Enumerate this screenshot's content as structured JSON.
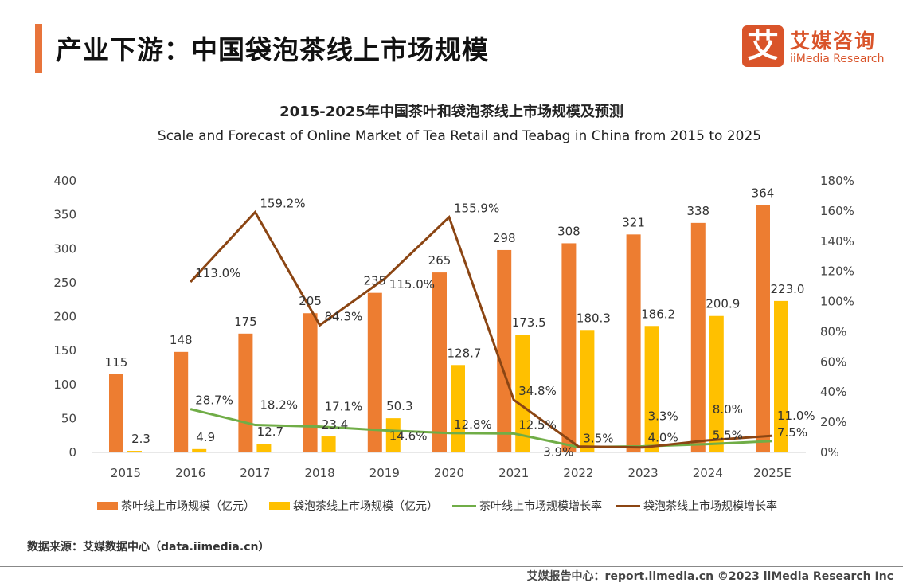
{
  "header": {
    "title": "产业下游：中国袋泡茶线上市场规模"
  },
  "logo": {
    "mark": "艾",
    "cn": "艾媒咨询",
    "en": "iiMedia Research"
  },
  "chart_data": {
    "type": "bar",
    "title": "2015-2025年中国茶叶和袋泡茶线上市场规模及预测",
    "subtitle": "Scale and Forecast of Online Market of Tea Retail and Teabag in China from 2015 to 2025",
    "categories": [
      "2015",
      "2016",
      "2017",
      "2018",
      "2019",
      "2020",
      "2021",
      "2022",
      "2023",
      "2024",
      "2025E"
    ],
    "ylim": [
      0,
      400
    ],
    "yticks": [
      0,
      50,
      100,
      150,
      200,
      250,
      300,
      350,
      400
    ],
    "y2lim": [
      0,
      180
    ],
    "y2ticks": [
      "0%",
      "20%",
      "40%",
      "60%",
      "80%",
      "100%",
      "120%",
      "140%",
      "160%",
      "180%"
    ],
    "series": [
      {
        "name": "茶叶线上市场规模（亿元）",
        "type": "bar",
        "axis": "left",
        "color": "#ed7d31",
        "values": [
          115,
          148,
          175,
          205,
          235,
          265,
          298,
          308,
          321,
          338,
          364
        ]
      },
      {
        "name": "袋泡茶线上市场规模（亿元）",
        "type": "bar",
        "axis": "left",
        "color": "#ffc000",
        "values": [
          2.3,
          4.9,
          12.7,
          23.4,
          50.3,
          128.7,
          173.5,
          180.3,
          186.2,
          200.9,
          223.0
        ]
      },
      {
        "name": "茶叶线上市场规模增长率",
        "type": "line",
        "axis": "right",
        "color": "#70ad47",
        "values": [
          null,
          28.7,
          18.2,
          17.1,
          14.6,
          12.8,
          12.5,
          3.5,
          4.0,
          5.5,
          7.5
        ]
      },
      {
        "name": "袋泡茶线上市场规模增长率",
        "type": "line",
        "axis": "right",
        "color": "#8b4513",
        "values": [
          null,
          113.0,
          159.2,
          84.3,
          115.0,
          155.9,
          34.8,
          3.9,
          3.3,
          8.0,
          11.0
        ]
      }
    ],
    "grid": false,
    "legend": "bottom"
  },
  "source": "数据来源：艾媒数据中心（data.iimedia.cn）",
  "footer": "艾媒报告中心：report.iimedia.cn  ©2023  iiMedia Research  Inc"
}
